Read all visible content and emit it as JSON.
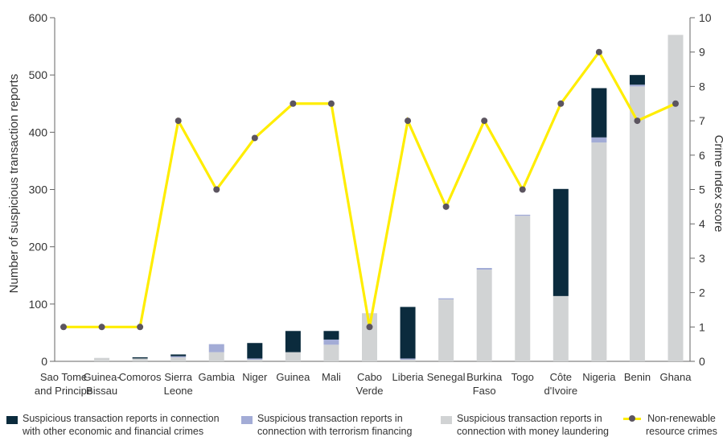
{
  "chart_data": {
    "type": "bar",
    "stacked": true,
    "categories": [
      "Sao Tome and Principe",
      "Guinea-Bissau",
      "Comoros",
      "Sierra Leone",
      "Gambia",
      "Niger",
      "Guinea",
      "Mali",
      "Cabo Verde",
      "Liberia",
      "Senegal",
      "Burkina Faso",
      "Togo",
      "Côte d'Ivoire",
      "Nigeria",
      "Benin",
      "Ghana"
    ],
    "category_lines": [
      [
        "Sao Tome",
        "and Principe"
      ],
      [
        "Guinea-",
        "Bissau"
      ],
      [
        "Comoros"
      ],
      [
        "Sierra",
        "Leone"
      ],
      [
        "Gambia"
      ],
      [
        "Niger"
      ],
      [
        "Guinea"
      ],
      [
        "Mali"
      ],
      [
        "Cabo",
        "Verde"
      ],
      [
        "Liberia"
      ],
      [
        "Senegal"
      ],
      [
        "Burkina",
        "Faso"
      ],
      [
        "Togo"
      ],
      [
        "Côte",
        "d'Ivoire"
      ],
      [
        "Nigeria"
      ],
      [
        "Benin"
      ],
      [
        "Ghana"
      ]
    ],
    "series": [
      {
        "name": "Suspicious transaction reports in connection with money laundering",
        "name_lines": [
          "Suspicious transaction reports in",
          "connection with money laundering"
        ],
        "kind": "bar",
        "color": "#d1d3d4",
        "values": [
          0,
          6,
          5,
          7,
          16,
          3,
          16,
          29,
          84,
          3,
          108,
          160,
          254,
          114,
          382,
          480,
          570
        ]
      },
      {
        "name": "Suspicious transaction reports in connection with terrorism financing",
        "name_lines": [
          "Suspicious transaction reports in",
          "connection with terrorism financing"
        ],
        "kind": "bar",
        "color": "#a3acd6",
        "values": [
          0,
          0,
          0,
          2,
          14,
          2,
          0,
          9,
          0,
          2,
          2,
          3,
          2,
          0,
          9,
          3,
          0
        ]
      },
      {
        "name": "Suspicious transaction reports in connection with other economic and financial crimes",
        "name_lines": [
          "Suspicious transaction reports in connection",
          "with other economic and financial crimes"
        ],
        "kind": "bar",
        "color": "#0b2b3d",
        "values": [
          0,
          0,
          2,
          3,
          0,
          27,
          37,
          15,
          0,
          90,
          0,
          0,
          0,
          187,
          86,
          17,
          0
        ]
      },
      {
        "name": "Non-renewable resource crimes",
        "name_lines": [
          "Non-renewable",
          "resource crimes"
        ],
        "kind": "line",
        "axis": "right",
        "color": "#ffed00",
        "marker_color": "#5c5560",
        "values": [
          1,
          1,
          1,
          7,
          5,
          6.5,
          7.5,
          7.5,
          1,
          7,
          4.5,
          7,
          5,
          7.5,
          9,
          7,
          7.5
        ]
      }
    ],
    "ylabel": "Number of suspicious transaction reports",
    "ylabel_right": "Crime index score",
    "ylim": [
      0,
      600
    ],
    "yticks": [
      0,
      100,
      200,
      300,
      400,
      500,
      600
    ],
    "ylim_right": [
      0,
      10
    ],
    "yticks_right": [
      0,
      1,
      2,
      3,
      4,
      5,
      6,
      7,
      8,
      9,
      10
    ],
    "legend_position": "bottom",
    "grid": false
  }
}
